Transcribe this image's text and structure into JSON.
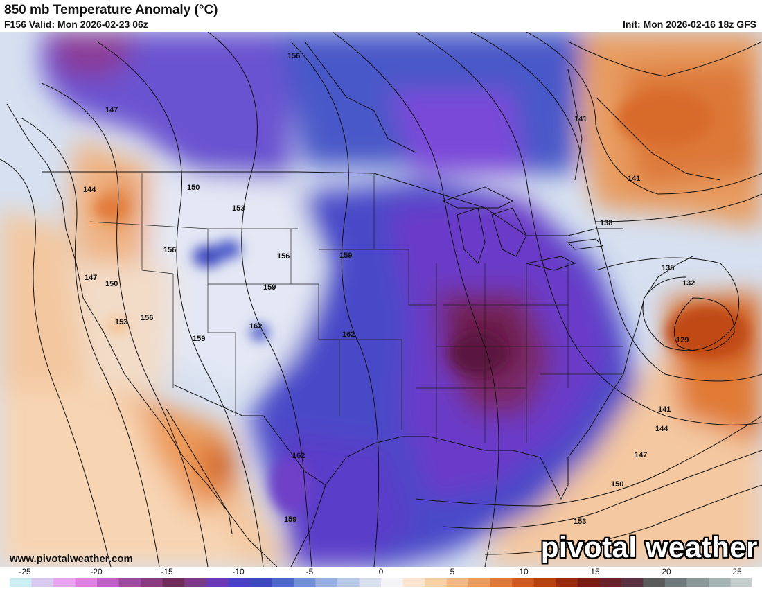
{
  "header": {
    "title": "850 mb Temperature Anomaly (°C)",
    "valid": "F156 Valid: Mon 2026-02-23 06z",
    "init": "Init: Mon 2026-02-16 18z GFS"
  },
  "branding": {
    "website": "www.pivotalweather.com",
    "logo": "pivotal weather"
  },
  "colorbar": {
    "ticks": [
      "-25",
      "-20",
      "-15",
      "-10",
      "-5",
      "0",
      "5",
      "10",
      "15",
      "20",
      "25"
    ],
    "colors": [
      "#c9eef4",
      "#d9c8ef",
      "#e6a8ec",
      "#e080e0",
      "#c060c8",
      "#a04c9c",
      "#8a3a80",
      "#6c2c5c",
      "#7a3a86",
      "#6a38b8",
      "#4a40c8",
      "#3c48c0",
      "#4c68cc",
      "#7090d8",
      "#98b0e0",
      "#b8c8e8",
      "#d8e0f0",
      "#f4f4f8",
      "#fbe4d0",
      "#f8d0a8",
      "#f4b882",
      "#ec9c5c",
      "#e07838",
      "#d05a20",
      "#b8420e",
      "#9a2a0c",
      "#7a1a10",
      "#6a2028",
      "#5c3040",
      "#5a5a5a",
      "#707a7c",
      "#8c9898",
      "#a6b4b4",
      "#c4cccc"
    ]
  },
  "contour_labels": [
    "156",
    "147",
    "141",
    "144",
    "150",
    "153",
    "156",
    "156",
    "159",
    "141",
    "138",
    "147",
    "150",
    "159",
    "135",
    "132",
    "153",
    "156",
    "162",
    "162",
    "159",
    "129",
    "141",
    "144",
    "147",
    "150",
    "153",
    "159",
    "162"
  ],
  "map": {
    "region": "North America",
    "field": "850 mb temperature anomaly with geopotential height contours"
  }
}
